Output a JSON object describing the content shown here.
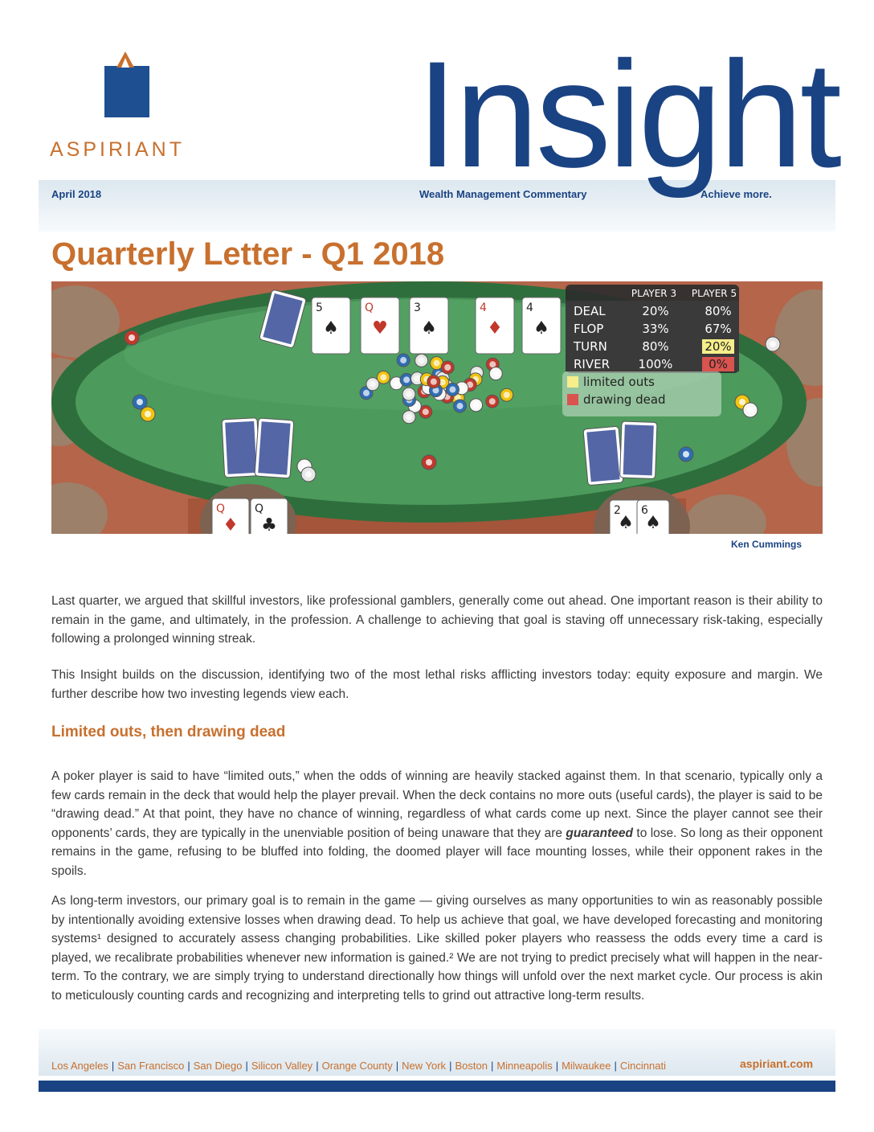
{
  "brand": {
    "logo_text": "ASPIRIANT",
    "publication": "Insight",
    "colors": {
      "navy": "#1a4383",
      "orange": "#c8702e",
      "felt": "#4c9a5c"
    }
  },
  "header": {
    "date": "April 2018",
    "subtitle": "Wealth Management Commentary",
    "tagline": "Achieve more."
  },
  "title": "Quarterly Letter - Q1 2018",
  "illustration": {
    "credit": "Ken Cummings",
    "community_cards": [
      {
        "rank": "5",
        "suit": "♠",
        "color": "#222"
      },
      {
        "rank": "Q",
        "suit": "♥",
        "color": "#c0392b"
      },
      {
        "rank": "3",
        "suit": "♠",
        "color": "#222"
      },
      {
        "rank": "4",
        "suit": "♦",
        "color": "#c0392b"
      },
      {
        "rank": "4",
        "suit": "♠",
        "color": "#222"
      }
    ],
    "player3_cards": [
      {
        "rank": "Q",
        "suit": "♦",
        "color": "#c0392b"
      },
      {
        "rank": "Q",
        "suit": "♣",
        "color": "#222"
      }
    ],
    "player5_cards": [
      {
        "rank": "2",
        "suit": "♠",
        "color": "#222"
      },
      {
        "rank": "6",
        "suit": "♠",
        "color": "#222"
      }
    ],
    "odds_table": {
      "headers": [
        "",
        "PLAYER 3",
        "PLAYER 5"
      ],
      "rows": [
        {
          "stage": "DEAL",
          "p3": "20%",
          "p5": "80%",
          "p5_highlight": ""
        },
        {
          "stage": "FLOP",
          "p3": "33%",
          "p5": "67%",
          "p5_highlight": ""
        },
        {
          "stage": "TURN",
          "p3": "80%",
          "p5": "20%",
          "p5_highlight": "#f6ee8a"
        },
        {
          "stage": "RIVER",
          "p3": "100%",
          "p5": "0%",
          "p5_highlight": "#d9534f"
        }
      ],
      "legend": [
        {
          "label": "limited outs",
          "color": "#f6ee8a"
        },
        {
          "label": "drawing dead",
          "color": "#d9534f"
        }
      ]
    }
  },
  "body": {
    "p1": "Last quarter, we argued that skillful investors, like professional gamblers, generally come out ahead. One important reason is their ability to remain in the game, and ultimately, in the profession. A challenge to achieving that goal is staving off unnecessary risk-taking, especially following a prolonged winning streak.",
    "p2": "This Insight builds on the discussion, identifying two of the most lethal risks afflicting investors today: equity exposure and margin. We further describe how two investing legends view each.",
    "section_heading": "Limited outs, then drawing dead",
    "p3_a": "A poker player is said to have “limited outs,” when the odds of winning are heavily stacked against them. In that scenario, typically only a few cards remain in the deck that would help the player prevail. When the deck contains no more outs (useful cards), the player is said to be “drawing dead.” At that point, they have no chance of winning, regardless of what cards come up next. Since the player cannot see their opponents’ cards, they are typically in the unenviable position of being unaware that they are ",
    "p3_em": "guaranteed",
    "p3_b": " to lose. So long as their opponent remains in the game, refusing to be bluffed into folding, the doomed player will face mounting losses, while their opponent rakes in the spoils.",
    "p4": "As long-term investors, our primary goal is to remain in the game — giving ourselves as many opportunities to win as reasonably possible by intentionally avoiding extensive losses when drawing dead. To help us achieve that goal, we have developed forecasting and monitoring systems¹ designed to accurately assess changing probabilities. Like skilled poker players who reassess the odds every time a card is played, we recalibrate probabilities whenever new information is gained.²  We are not trying to predict precisely what will happen in the near-term. To the contrary, we are simply trying to understand directionally how things will unfold over the next market cycle. Our process is akin to meticulously counting cards and recognizing and interpreting tells to grind out attractive long-term results."
  },
  "footer": {
    "cities": [
      "Los Angeles",
      "San Francisco",
      "San Diego",
      "Silicon Valley",
      "Orange County",
      "New York",
      "Boston",
      "Minneapolis",
      "Milwaukee",
      "Cincinnati"
    ],
    "separator": "|",
    "website": "aspiriant.com"
  }
}
